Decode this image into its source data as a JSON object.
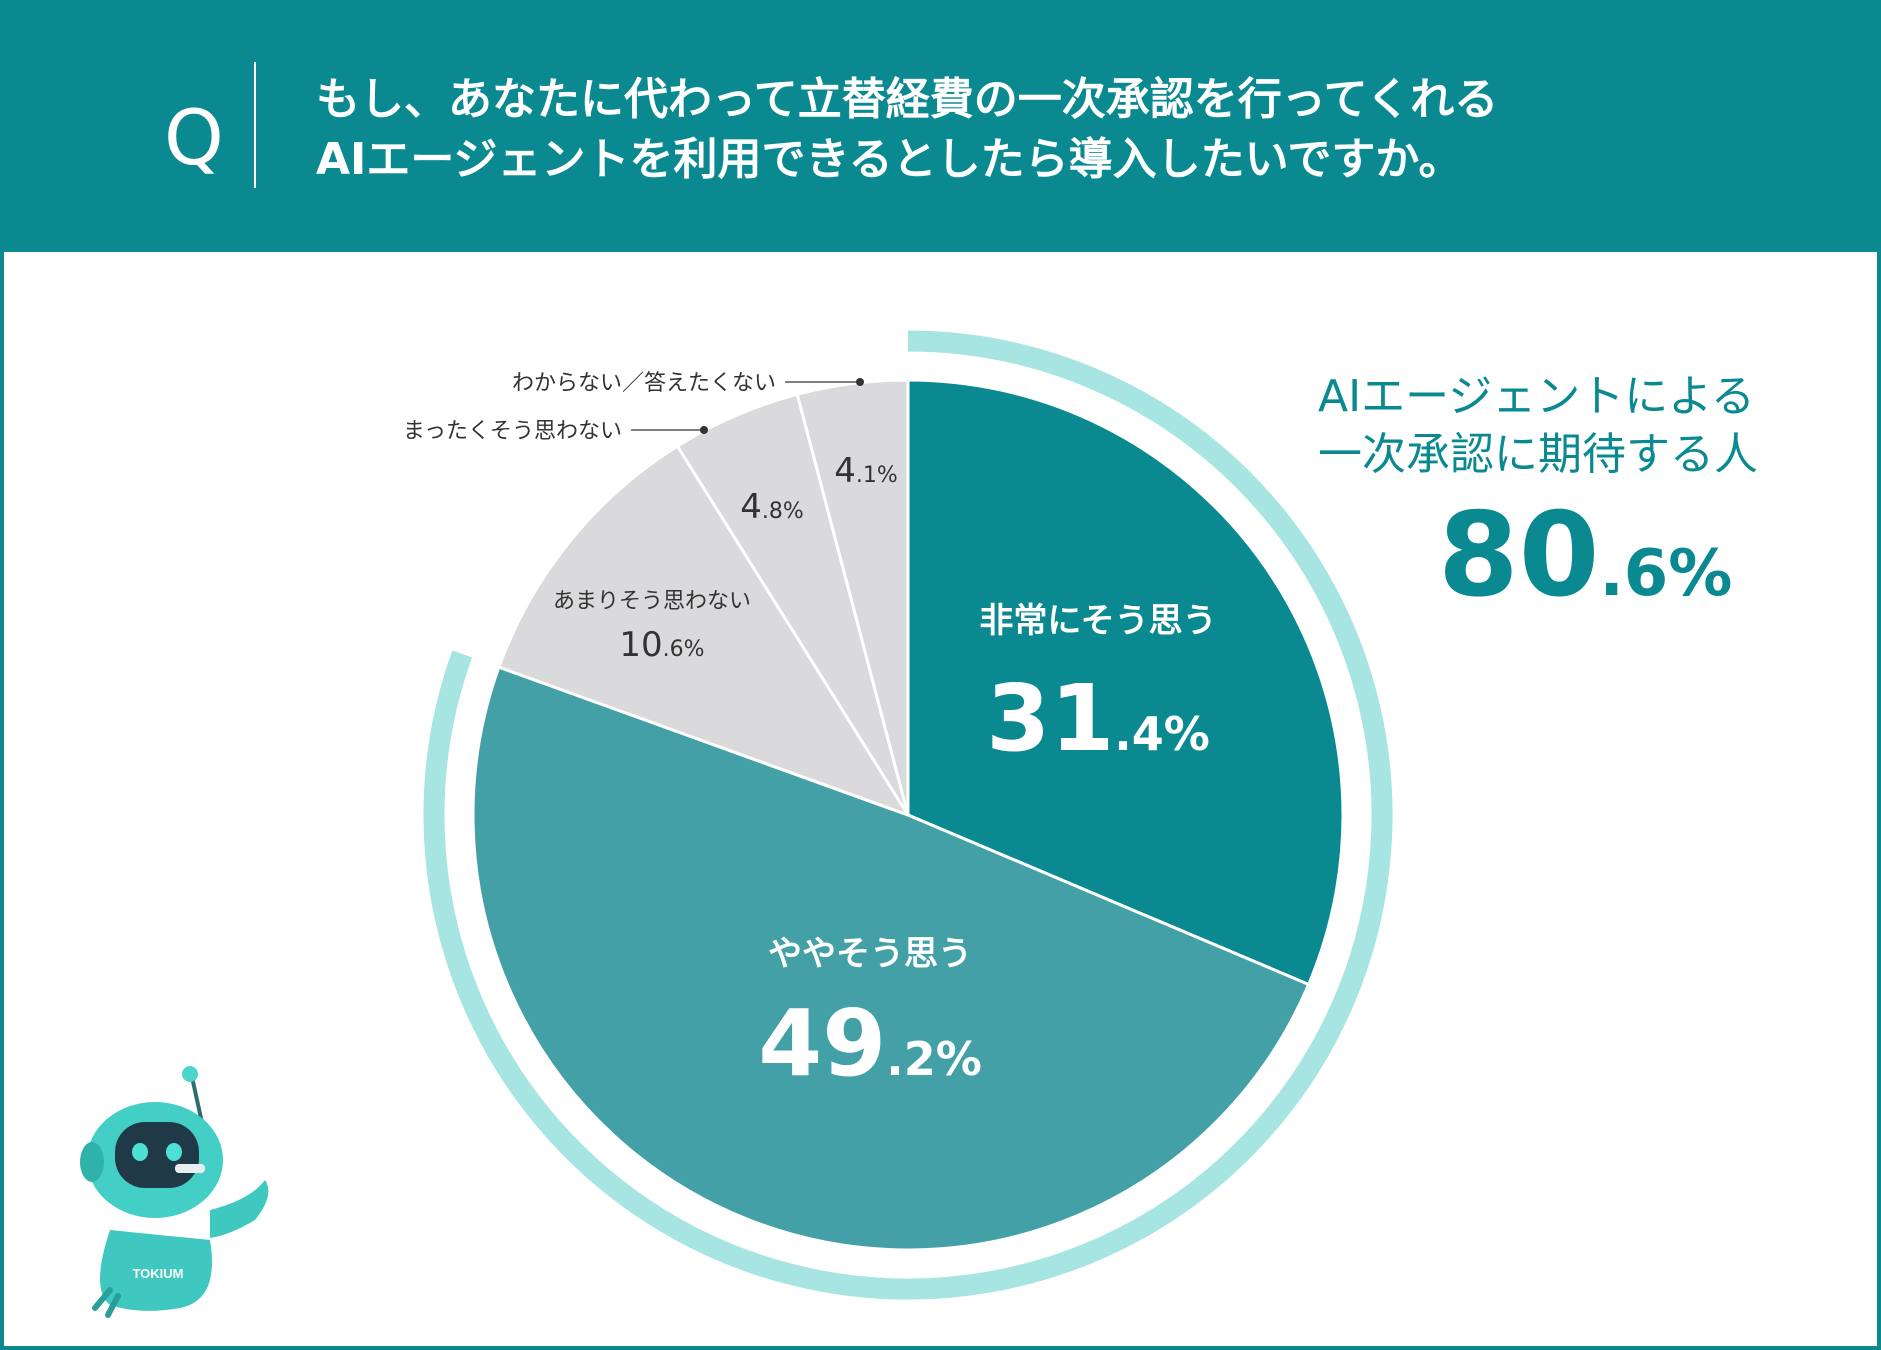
{
  "header": {
    "q_label": "Q",
    "question_line1": "もし、あなたに代わって立替経費の一次承認を行ってくれる",
    "question_line2": "AIエージェントを利用できるとしたら導入したいですか。"
  },
  "colors": {
    "brand": "#0a8a90",
    "slice_dark": "#0a8a90",
    "slice_mid": "#43a0a6",
    "slice_gray": "#dadadc",
    "ring": "#a6e5e2",
    "text_dark": "#333333"
  },
  "chart_data": {
    "type": "pie",
    "start": "12 o'clock, clockwise",
    "slices": [
      {
        "label": "非常にそう思う",
        "value": 31.4,
        "int": "31",
        "dec": ".4%",
        "color": "#0a8a90"
      },
      {
        "label": "ややそう思う",
        "value": 49.2,
        "int": "49",
        "dec": ".2%",
        "color": "#43a0a6"
      },
      {
        "label": "あまりそう思わない",
        "value": 10.6,
        "int": "10",
        "dec": ".6%",
        "color": "#dadadc"
      },
      {
        "label": "まったくそう思わない",
        "value": 4.8,
        "int": "4",
        "dec": ".8%",
        "color": "#dadadc"
      },
      {
        "label": "わからない／答えたくない",
        "value": 4.1,
        "int": "4",
        "dec": ".1%",
        "color": "#dadadc"
      }
    ],
    "highlight_ring": {
      "covers": [
        "非常にそう思う",
        "ややそう思う"
      ],
      "total": 80.6
    }
  },
  "callout": {
    "line1": "AIエージェントによる",
    "line2": "一次承認に期待する人",
    "big_int": "80",
    "big_dec": ".6%"
  },
  "mascot": {
    "badge": "TOKIUM"
  }
}
